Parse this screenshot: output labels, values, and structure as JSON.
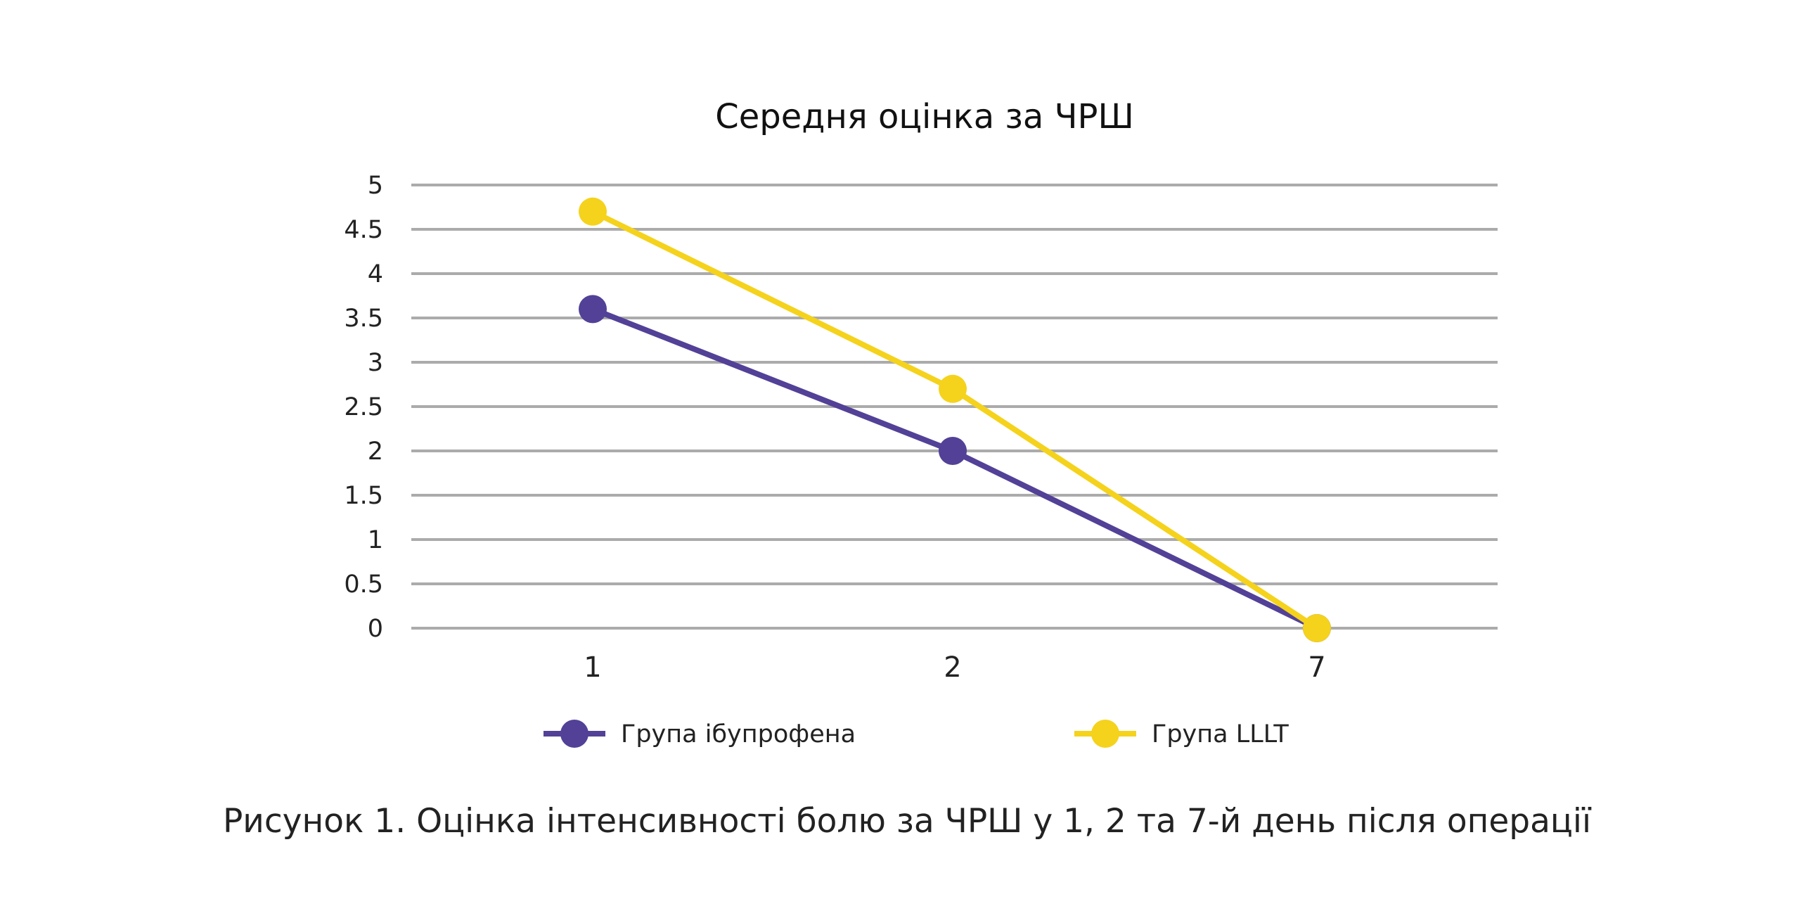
{
  "chart_data": {
    "type": "line",
    "title": "Середня оцінка за ЧРШ",
    "categories": [
      "1",
      "2",
      "7"
    ],
    "xlabel": "",
    "ylabel": "",
    "ylim": [
      0,
      5
    ],
    "yticks": [
      "0",
      "0.5",
      "1",
      "1.5",
      "2",
      "2.5",
      "3",
      "3.5",
      "4",
      "4.5",
      "5"
    ],
    "grid": true,
    "legend_position": "bottom",
    "series": [
      {
        "name": "Група ібупрофена",
        "values": [
          3.6,
          2.0,
          0.0
        ],
        "color": "#524197"
      },
      {
        "name": "Група LLLT",
        "values": [
          4.7,
          2.7,
          0.0
        ],
        "color": "#F5D21C"
      }
    ]
  },
  "caption": "Рисунок 1. Оцінка інтенсивності болю за ЧРШ у 1, 2 та 7-й день після операції"
}
